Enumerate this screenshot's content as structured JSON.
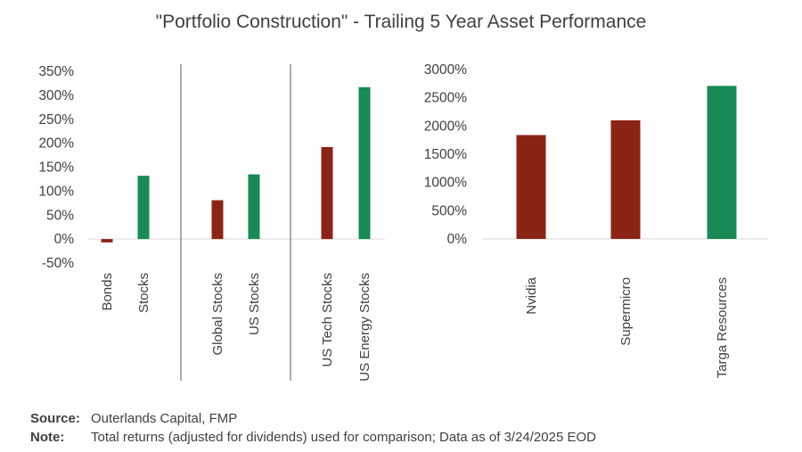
{
  "title": "\"Portfolio Construction\" - Trailing 5 Year Asset Performance",
  "colors": {
    "negative": "#8b2414",
    "positive": "#178a55",
    "axis": "#d9d9d9",
    "divider": "#595959",
    "text": "#404040"
  },
  "chart_data": [
    {
      "type": "bar",
      "categories": [
        "Bonds",
        "Stocks",
        "Global Stocks",
        "US Stocks",
        "US Tech Stocks",
        "US Energy Stocks"
      ],
      "values": [
        -7,
        132,
        81,
        135,
        192,
        317
      ],
      "bar_colors": [
        "#8b2414",
        "#178a55",
        "#8b2414",
        "#178a55",
        "#8b2414",
        "#178a55"
      ],
      "groups": [
        [
          "Bonds",
          "Stocks"
        ],
        [
          "Global Stocks",
          "US Stocks"
        ],
        [
          "US Tech Stocks",
          "US Energy Stocks"
        ]
      ],
      "yticks": [
        "350%",
        "300%",
        "250%",
        "200%",
        "150%",
        "100%",
        "50%",
        "0%",
        "-50%"
      ],
      "ylim": [
        -50,
        350
      ],
      "grid": false
    },
    {
      "type": "bar",
      "categories": [
        "Nvidia",
        "Supermicro",
        "Targa Resources"
      ],
      "values": [
        1840,
        2100,
        2710
      ],
      "bar_colors": [
        "#8b2414",
        "#8b2414",
        "#178a55"
      ],
      "yticks": [
        "3000%",
        "2500%",
        "2000%",
        "1500%",
        "1000%",
        "500%",
        "0%"
      ],
      "ylim": [
        0,
        3000
      ],
      "grid": false
    }
  ],
  "footer": {
    "source_label": "Source:",
    "source_text": "Outerlands Capital, FMP",
    "note_label": "Note:",
    "note_text": "Total returns (adjusted for dividends) used for comparison; Data as of 3/24/2025 EOD"
  }
}
